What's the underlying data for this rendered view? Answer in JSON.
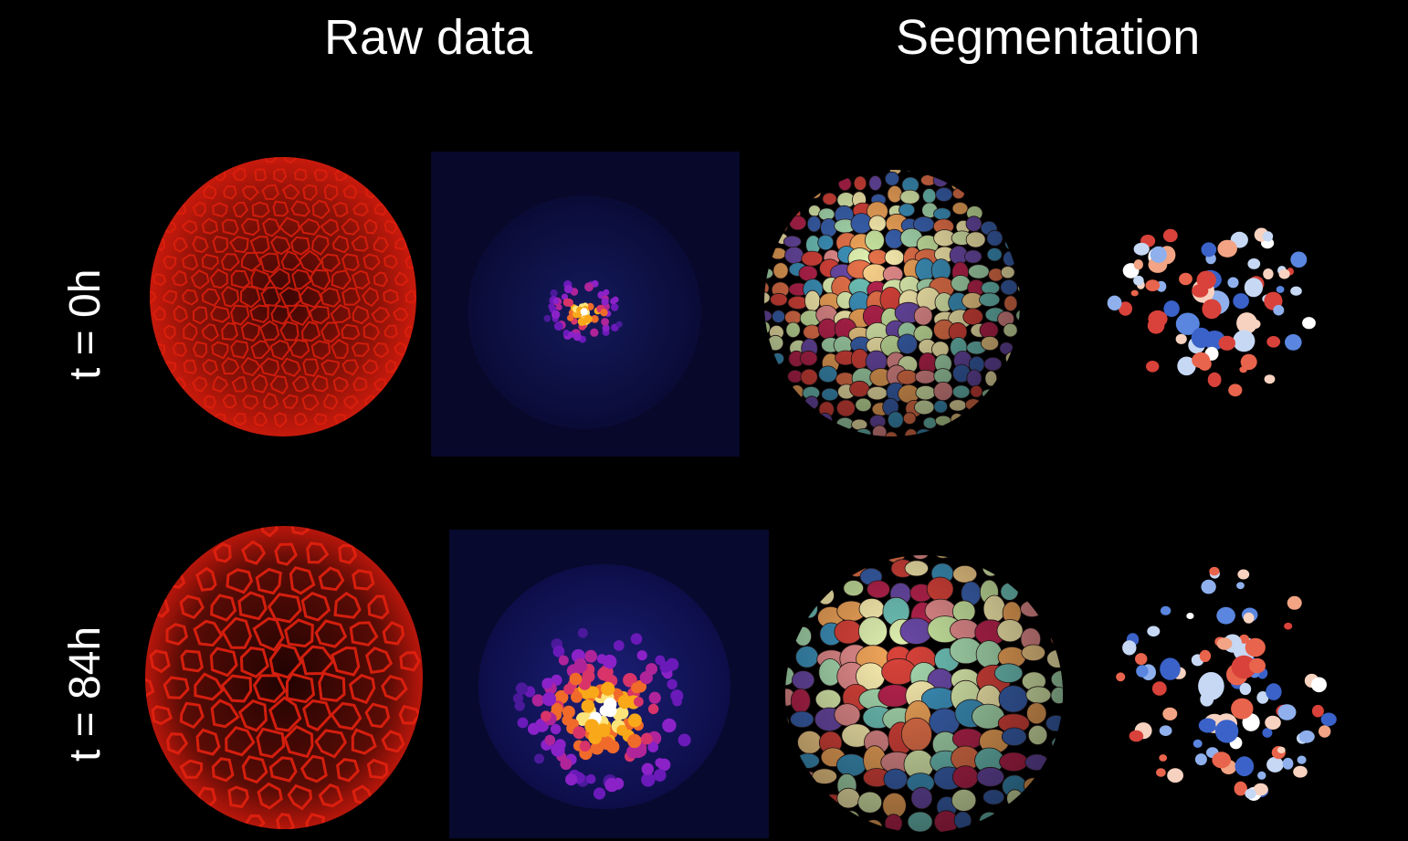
{
  "columns": {
    "raw_title": "Raw data",
    "seg_title": "Segmentation"
  },
  "rows": [
    {
      "label": "t = 0h"
    },
    {
      "label": "t = 84h"
    }
  ],
  "colors": {
    "background": "#000000",
    "membrane": "#d01a0a",
    "nuclei_bg": "#0b0c3a",
    "text": "#ffffff"
  }
}
